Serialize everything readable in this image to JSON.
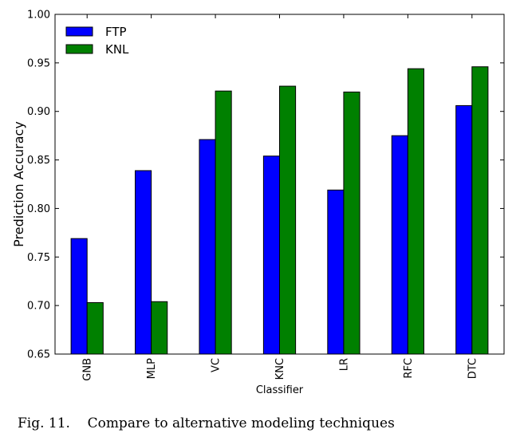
{
  "chart_data": {
    "type": "bar",
    "title": "",
    "xlabel": "Classifier",
    "ylabel": "Prediction Accuracy",
    "categories": [
      "GNB",
      "MLP",
      "VC",
      "KNC",
      "LR",
      "RFC",
      "DTC"
    ],
    "series": [
      {
        "name": "FTP",
        "color": "#0000ff",
        "values": [
          0.769,
          0.839,
          0.871,
          0.854,
          0.819,
          0.875,
          0.906
        ]
      },
      {
        "name": "KNL",
        "color": "#008000",
        "values": [
          0.703,
          0.704,
          0.921,
          0.926,
          0.92,
          0.944,
          0.946
        ]
      }
    ],
    "ylim": [
      0.65,
      1.0
    ],
    "yticks": [
      "0.65",
      "0.70",
      "0.75",
      "0.80",
      "0.85",
      "0.90",
      "0.95",
      "1.00"
    ],
    "grid": false,
    "legend_position": "top-left"
  },
  "caption": "Fig. 11.    Compare to alternative modeling techniques"
}
